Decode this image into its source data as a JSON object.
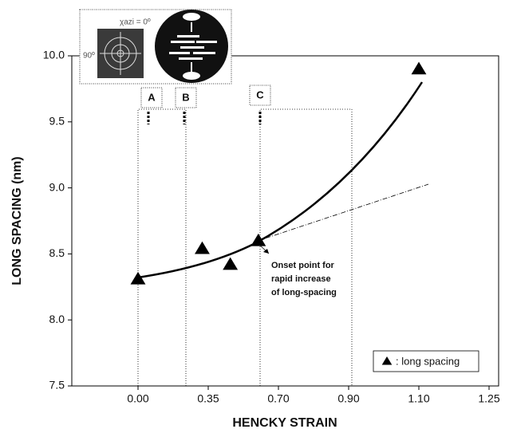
{
  "chart_data": {
    "type": "scatter",
    "xlabel": "HENCKY STRAIN",
    "ylabel": "LONG SPACING (nm)",
    "x": [
      0,
      0.32,
      0.46,
      0.6,
      1.1
    ],
    "series": [
      {
        "name": ": long spacing",
        "color": "#000000",
        "values": [
          8.31,
          8.54,
          8.42,
          8.6,
          9.9
        ]
      }
    ],
    "xlim": [
      -0.33,
      1.27
    ],
    "xticks": [
      {
        "value": 0,
        "label": "0.00"
      },
      0.35,
      {
        "value": 0.7,
        "label": "0.70"
      },
      {
        "value": 0.9,
        "label": "0.90"
      },
      {
        "value": 1.1,
        "label": "1.10"
      },
      1.25
    ],
    "ylim": [
      7.5,
      10.0
    ],
    "yticks": [
      7.5,
      {
        "value": 8,
        "label": "8.0"
      },
      8.5,
      {
        "value": 9,
        "label": "9.0"
      },
      9.5,
      {
        "value": 10,
        "label": "10.0"
      }
    ],
    "region_labels": [
      "A",
      "B",
      "C"
    ],
    "annotation": [
      "Onset point for",
      "rapid increase",
      "of long-spacing"
    ],
    "inset_labels": [
      "χazi = 0º",
      "90º"
    ],
    "legend": "lower right"
  }
}
